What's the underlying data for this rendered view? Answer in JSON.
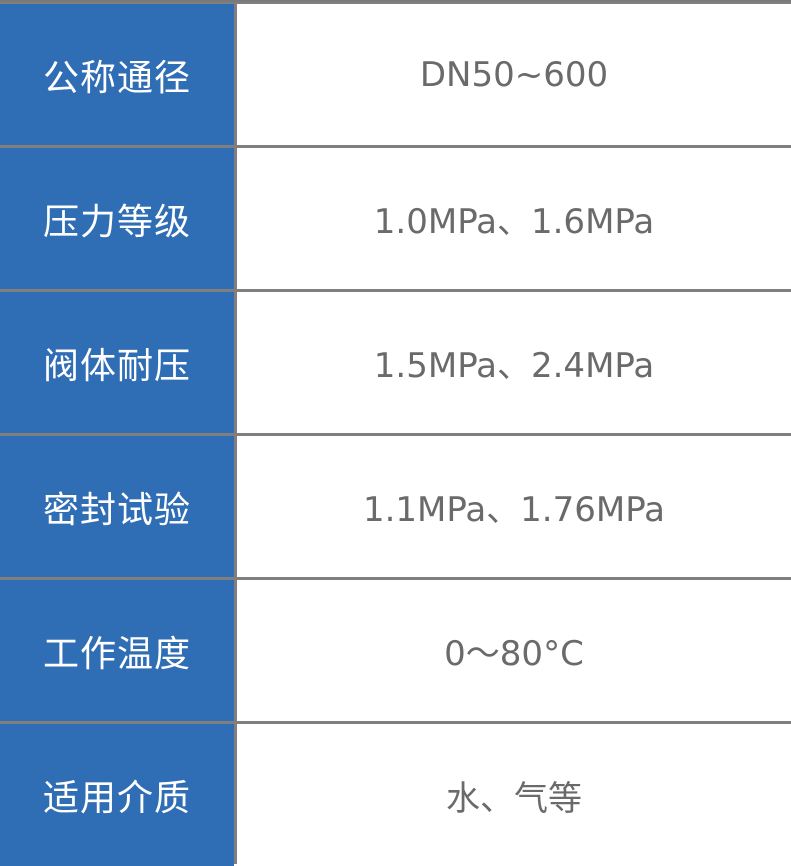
{
  "colors": {
    "label_bg": "#2f6db5",
    "label_text": "#ffffff",
    "value_text": "#6a6a6a",
    "border": "#7f7f7f"
  },
  "rows": [
    {
      "label": "公称通径",
      "value": "DN50~600"
    },
    {
      "label": "压力等级",
      "value": "1.0MPa、1.6MPa"
    },
    {
      "label": "阀体耐压",
      "value": "1.5MPa、2.4MPa"
    },
    {
      "label": "密封试验",
      "value": "1.1MPa、1.76MPa"
    },
    {
      "label": "工作温度",
      "value": "0～80°C"
    },
    {
      "label": "适用介质",
      "value": "水、气等"
    }
  ]
}
